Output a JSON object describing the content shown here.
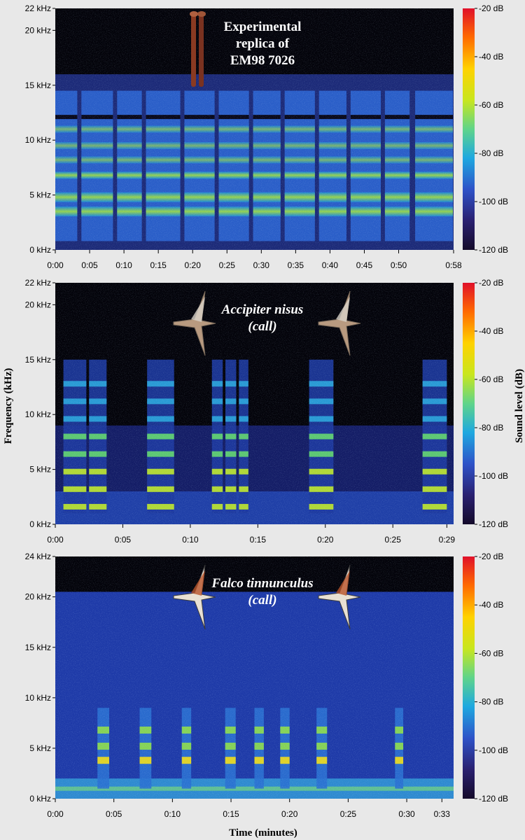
{
  "figure": {
    "ylabel": "Frequency (kHz)",
    "xlabel": "Time (minutes)",
    "colorbar_label": "Sound level (dB)"
  },
  "colormap": [
    "#140a2a",
    "#2a2070",
    "#2e52c8",
    "#1ea8e0",
    "#5fd48a",
    "#c8e61e",
    "#ffd200",
    "#ff6a00",
    "#e0102a"
  ],
  "chart_data": [
    {
      "type": "heatmap",
      "title_lines": [
        "Experimental",
        "replica of",
        "EM98 7026"
      ],
      "title_style": "upright",
      "image": "bone-icon",
      "x": {
        "ticks": [
          "0:00",
          "0:05",
          "0:10",
          "0:15",
          "0:20",
          "0:25",
          "0:30",
          "0:35",
          "0:40",
          "0:45",
          "0:50",
          "0:58"
        ],
        "tick_seconds": [
          0,
          5,
          10,
          15,
          20,
          25,
          30,
          35,
          40,
          45,
          50,
          58
        ],
        "range": [
          0,
          58
        ]
      },
      "y": {
        "ticks": [
          "0 kHz",
          "5 kHz",
          "10 kHz",
          "15 kHz",
          "20 kHz",
          "22 kHz"
        ],
        "tick_values": [
          0,
          5,
          10,
          15,
          20,
          22
        ],
        "range": [
          0,
          22
        ]
      },
      "colorbar": {
        "ticks": [
          "-20 dB",
          "-40 dB",
          "-60 dB",
          "-80 dB",
          "-100 dB",
          "-120 dB"
        ],
        "values": [
          -20,
          -40,
          -60,
          -80,
          -100,
          -120
        ]
      },
      "top_khz": 16,
      "segments": [
        [
          0,
          3.2
        ],
        [
          3.8,
          8.4
        ],
        [
          9,
          12.6
        ],
        [
          13.2,
          18.2
        ],
        [
          18.8,
          23.2
        ],
        [
          23.8,
          28.2
        ],
        [
          28.8,
          32.8
        ],
        [
          33.4,
          37.8
        ],
        [
          38.4,
          42.4
        ],
        [
          43,
          47.4
        ],
        [
          48,
          51.6
        ],
        [
          52.4,
          57.9
        ]
      ],
      "bands_khz": [
        3.5,
        4.8,
        6.8,
        8.2,
        9.5,
        11
      ]
    },
    {
      "type": "heatmap",
      "title_lines": [
        "Accipiter nisus",
        "(call)"
      ],
      "title_style": "italic",
      "image": "sparrowhawk-icon",
      "x": {
        "ticks": [
          "0:00",
          "0:05",
          "0:10",
          "0:15",
          "0:20",
          "0:25",
          "0:29"
        ],
        "tick_seconds": [
          0,
          5,
          10,
          15,
          20,
          25,
          29
        ],
        "range": [
          0,
          29.5
        ]
      },
      "y": {
        "ticks": [
          "0 kHz",
          "5 kHz",
          "10 kHz",
          "15 kHz",
          "20 kHz",
          "22 kHz"
        ],
        "tick_values": [
          0,
          5,
          10,
          15,
          20,
          22
        ],
        "range": [
          0,
          22
        ]
      },
      "colorbar": {
        "ticks": [
          "-20 dB",
          "-40 dB",
          "-60 dB",
          "-80 dB",
          "-100 dB",
          "-120 dB"
        ],
        "values": [
          -20,
          -40,
          -60,
          -80,
          -100,
          -120
        ]
      },
      "segments": [
        [
          0.6,
          2.3
        ],
        [
          2.5,
          3.8
        ],
        [
          6.8,
          8.8
        ],
        [
          11.6,
          12.4
        ],
        [
          12.6,
          13.4
        ],
        [
          13.6,
          14.3
        ],
        [
          18.8,
          20.6
        ],
        [
          27.2,
          29
        ]
      ],
      "harmonics_khz": [
        1.6,
        3.2,
        4.8,
        6.4,
        8.0,
        9.6,
        11.2,
        12.8
      ]
    },
    {
      "type": "heatmap",
      "title_lines": [
        "Falco tinnunculus",
        "(call)"
      ],
      "title_style": "italic",
      "image": "kestrel-icon",
      "x": {
        "ticks": [
          "0:00",
          "0:05",
          "0:10",
          "0:15",
          "0:20",
          "0:25",
          "0:30",
          "0:33"
        ],
        "tick_seconds": [
          0,
          5,
          10,
          15,
          20,
          25,
          30,
          33
        ],
        "range": [
          0,
          34
        ]
      },
      "y": {
        "ticks": [
          "0 kHz",
          "5 kHz",
          "10 kHz",
          "15 kHz",
          "20 kHz",
          "24 kHz"
        ],
        "tick_values": [
          0,
          5,
          10,
          15,
          20,
          24
        ],
        "range": [
          0,
          24
        ]
      },
      "colorbar": {
        "ticks": [
          "-20 dB",
          "-40 dB",
          "-60 dB",
          "-80 dB",
          "-100 dB",
          "-120 dB"
        ],
        "values": [
          -20,
          -40,
          -60,
          -80,
          -100,
          -120
        ]
      },
      "noise_top_khz": 20.5,
      "segments": [
        [
          3.6,
          4.6
        ],
        [
          7.2,
          8.2
        ],
        [
          10.8,
          11.6
        ],
        [
          14.5,
          15.4
        ],
        [
          17,
          17.8
        ],
        [
          19.2,
          20
        ],
        [
          22.3,
          23.2
        ],
        [
          29,
          29.7
        ]
      ],
      "harmonics_khz": [
        3.8,
        5.2,
        6.8
      ]
    }
  ]
}
